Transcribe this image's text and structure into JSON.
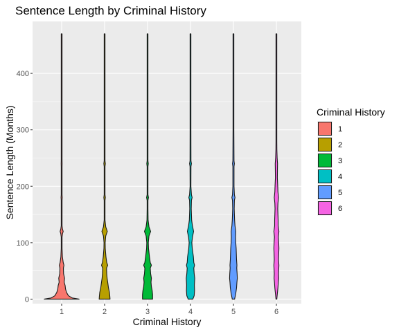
{
  "chart_data": {
    "type": "violin",
    "title": "Sentence Length by Criminal History",
    "xlabel": "Criminal History",
    "ylabel": "Sentence Length (Months)",
    "categories": [
      "1",
      "2",
      "3",
      "4",
      "5",
      "6"
    ],
    "y_ticks": [
      0,
      100,
      200,
      300,
      400
    ],
    "ylim": [
      -8,
      492
    ],
    "grid": true,
    "legend": {
      "title": "Criminal History",
      "placement": "right",
      "entries": [
        {
          "label": "1",
          "color": "#F8766D"
        },
        {
          "label": "2",
          "color": "#B79F00"
        },
        {
          "label": "3",
          "color": "#00BA38"
        },
        {
          "label": "4",
          "color": "#00BFC4"
        },
        {
          "label": "5",
          "color": "#619CFF"
        },
        {
          "label": "6",
          "color": "#F564E3"
        }
      ]
    },
    "series": [
      {
        "name": "1",
        "y_range": [
          0,
          470
        ],
        "profile": [
          [
            0,
            0.9
          ],
          [
            2,
            0.55
          ],
          [
            6,
            0.35
          ],
          [
            12,
            0.25
          ],
          [
            18,
            0.2
          ],
          [
            24,
            0.18
          ],
          [
            30,
            0.13
          ],
          [
            37,
            0.15
          ],
          [
            45,
            0.1
          ],
          [
            55,
            0.09
          ],
          [
            60,
            0.12
          ],
          [
            65,
            0.08
          ],
          [
            75,
            0.04
          ],
          [
            90,
            0.02
          ],
          [
            100,
            0.015
          ],
          [
            110,
            0.02
          ],
          [
            116,
            0.045
          ],
          [
            120,
            0.08
          ],
          [
            124,
            0.045
          ],
          [
            130,
            0.015
          ],
          [
            150,
            0.008
          ],
          [
            175,
            0.01
          ],
          [
            180,
            0.03
          ],
          [
            185,
            0.01
          ],
          [
            200,
            0.005
          ],
          [
            235,
            0.008
          ],
          [
            240,
            0.025
          ],
          [
            245,
            0.008
          ],
          [
            300,
            0.004
          ],
          [
            360,
            0.006
          ],
          [
            400,
            0.003
          ],
          [
            470,
            0.002
          ]
        ]
      },
      {
        "name": "2",
        "y_range": [
          0,
          470
        ],
        "profile": [
          [
            0,
            0.28
          ],
          [
            5,
            0.27
          ],
          [
            12,
            0.25
          ],
          [
            20,
            0.2
          ],
          [
            30,
            0.16
          ],
          [
            37,
            0.13
          ],
          [
            45,
            0.11
          ],
          [
            55,
            0.1
          ],
          [
            60,
            0.16
          ],
          [
            65,
            0.11
          ],
          [
            75,
            0.07
          ],
          [
            90,
            0.035
          ],
          [
            100,
            0.03
          ],
          [
            112,
            0.06
          ],
          [
            120,
            0.14
          ],
          [
            128,
            0.06
          ],
          [
            140,
            0.02
          ],
          [
            160,
            0.012
          ],
          [
            175,
            0.015
          ],
          [
            180,
            0.04
          ],
          [
            185,
            0.015
          ],
          [
            200,
            0.007
          ],
          [
            235,
            0.01
          ],
          [
            240,
            0.04
          ],
          [
            245,
            0.01
          ],
          [
            300,
            0.006
          ],
          [
            360,
            0.008
          ],
          [
            400,
            0.004
          ],
          [
            470,
            0.003
          ]
        ]
      },
      {
        "name": "3",
        "y_range": [
          0,
          470
        ],
        "profile": [
          [
            0,
            0.26
          ],
          [
            8,
            0.26
          ],
          [
            15,
            0.24
          ],
          [
            22,
            0.2
          ],
          [
            30,
            0.18
          ],
          [
            37,
            0.2
          ],
          [
            45,
            0.16
          ],
          [
            55,
            0.14
          ],
          [
            60,
            0.2
          ],
          [
            65,
            0.14
          ],
          [
            75,
            0.1
          ],
          [
            90,
            0.05
          ],
          [
            100,
            0.04
          ],
          [
            112,
            0.075
          ],
          [
            120,
            0.16
          ],
          [
            128,
            0.075
          ],
          [
            140,
            0.03
          ],
          [
            160,
            0.02
          ],
          [
            175,
            0.02
          ],
          [
            180,
            0.05
          ],
          [
            185,
            0.02
          ],
          [
            200,
            0.01
          ],
          [
            235,
            0.015
          ],
          [
            240,
            0.04
          ],
          [
            245,
            0.015
          ],
          [
            300,
            0.01
          ],
          [
            360,
            0.012
          ],
          [
            400,
            0.005
          ],
          [
            470,
            0.003
          ]
        ]
      },
      {
        "name": "4",
        "y_range": [
          0,
          470
        ],
        "profile": [
          [
            0,
            0.12
          ],
          [
            6,
            0.19
          ],
          [
            15,
            0.21
          ],
          [
            25,
            0.2
          ],
          [
            37,
            0.22
          ],
          [
            45,
            0.19
          ],
          [
            55,
            0.17
          ],
          [
            60,
            0.21
          ],
          [
            65,
            0.17
          ],
          [
            75,
            0.15
          ],
          [
            90,
            0.09
          ],
          [
            100,
            0.07
          ],
          [
            110,
            0.1
          ],
          [
            120,
            0.16
          ],
          [
            130,
            0.1
          ],
          [
            140,
            0.06
          ],
          [
            160,
            0.04
          ],
          [
            175,
            0.05
          ],
          [
            180,
            0.085
          ],
          [
            185,
            0.05
          ],
          [
            200,
            0.02
          ],
          [
            235,
            0.025
          ],
          [
            240,
            0.05
          ],
          [
            245,
            0.025
          ],
          [
            300,
            0.012
          ],
          [
            360,
            0.015
          ],
          [
            400,
            0.006
          ],
          [
            470,
            0.003
          ]
        ]
      },
      {
        "name": "5",
        "y_range": [
          0,
          470
        ],
        "profile": [
          [
            0,
            0.06
          ],
          [
            10,
            0.12
          ],
          [
            20,
            0.16
          ],
          [
            30,
            0.18
          ],
          [
            37,
            0.2
          ],
          [
            45,
            0.19
          ],
          [
            55,
            0.17
          ],
          [
            60,
            0.18
          ],
          [
            70,
            0.16
          ],
          [
            80,
            0.15
          ],
          [
            90,
            0.14
          ],
          [
            100,
            0.12
          ],
          [
            110,
            0.11
          ],
          [
            120,
            0.12
          ],
          [
            130,
            0.08
          ],
          [
            140,
            0.06
          ],
          [
            160,
            0.04
          ],
          [
            175,
            0.05
          ],
          [
            180,
            0.08
          ],
          [
            185,
            0.05
          ],
          [
            200,
            0.03
          ],
          [
            235,
            0.03
          ],
          [
            240,
            0.05
          ],
          [
            245,
            0.03
          ],
          [
            300,
            0.015
          ],
          [
            360,
            0.012
          ],
          [
            400,
            0.006
          ],
          [
            470,
            0.003
          ]
        ]
      },
      {
        "name": "6",
        "y_range": [
          0,
          470
        ],
        "profile": [
          [
            0,
            0.02
          ],
          [
            10,
            0.05
          ],
          [
            20,
            0.08
          ],
          [
            30,
            0.1
          ],
          [
            37,
            0.12
          ],
          [
            45,
            0.11
          ],
          [
            60,
            0.13
          ],
          [
            70,
            0.11
          ],
          [
            80,
            0.12
          ],
          [
            90,
            0.13
          ],
          [
            100,
            0.12
          ],
          [
            110,
            0.1
          ],
          [
            120,
            0.13
          ],
          [
            130,
            0.09
          ],
          [
            140,
            0.09
          ],
          [
            150,
            0.08
          ],
          [
            160,
            0.07
          ],
          [
            170,
            0.08
          ],
          [
            180,
            0.11
          ],
          [
            190,
            0.08
          ],
          [
            200,
            0.07
          ],
          [
            215,
            0.05
          ],
          [
            230,
            0.055
          ],
          [
            240,
            0.06
          ],
          [
            250,
            0.04
          ],
          [
            265,
            0.025
          ],
          [
            280,
            0.015
          ],
          [
            300,
            0.012
          ],
          [
            330,
            0.008
          ],
          [
            360,
            0.01
          ],
          [
            400,
            0.005
          ],
          [
            470,
            0.003
          ]
        ]
      }
    ]
  }
}
